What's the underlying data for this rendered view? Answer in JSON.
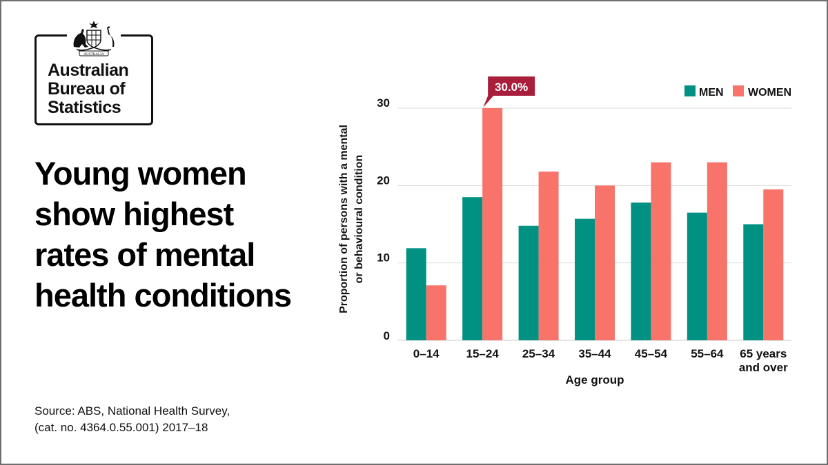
{
  "logo": {
    "crest_text": "AUSTRALIA",
    "lines": [
      "Australian",
      "Bureau of",
      "Statistics"
    ]
  },
  "headline": [
    "Young women",
    "show highest",
    "rates of mental",
    "health conditions"
  ],
  "source": [
    "Source: ABS, National Health Survey,",
    "(cat. no. 4364.0.55.001) 2017–18"
  ],
  "colors": {
    "men": "#009182",
    "women": "#f8736a",
    "callout": "#a91e3b",
    "grid": "#d9d9d9",
    "text": "#111111"
  },
  "chart_data": {
    "type": "bar",
    "categories": [
      [
        "0–14"
      ],
      [
        "15–24"
      ],
      [
        "25–34"
      ],
      [
        "35–44"
      ],
      [
        "45–54"
      ],
      [
        "55–64"
      ],
      [
        "65 years",
        "and over"
      ]
    ],
    "series": [
      {
        "name": "MEN",
        "values": [
          11.9,
          18.5,
          14.8,
          15.7,
          17.8,
          16.5,
          15.0
        ]
      },
      {
        "name": "WOMEN",
        "values": [
          7.1,
          30.0,
          21.8,
          20.0,
          23.0,
          23.0,
          19.5
        ]
      }
    ],
    "yticks": [
      0,
      10,
      20,
      30
    ],
    "ylim": [
      0,
      30
    ],
    "ylabel": [
      "Proportion of persons with a mental",
      "or behavioural condition"
    ],
    "xlabel": "Age group",
    "callout": {
      "text": "30.0%",
      "series": 1,
      "category": 1
    },
    "grid": true,
    "legend_position": "top-right"
  }
}
